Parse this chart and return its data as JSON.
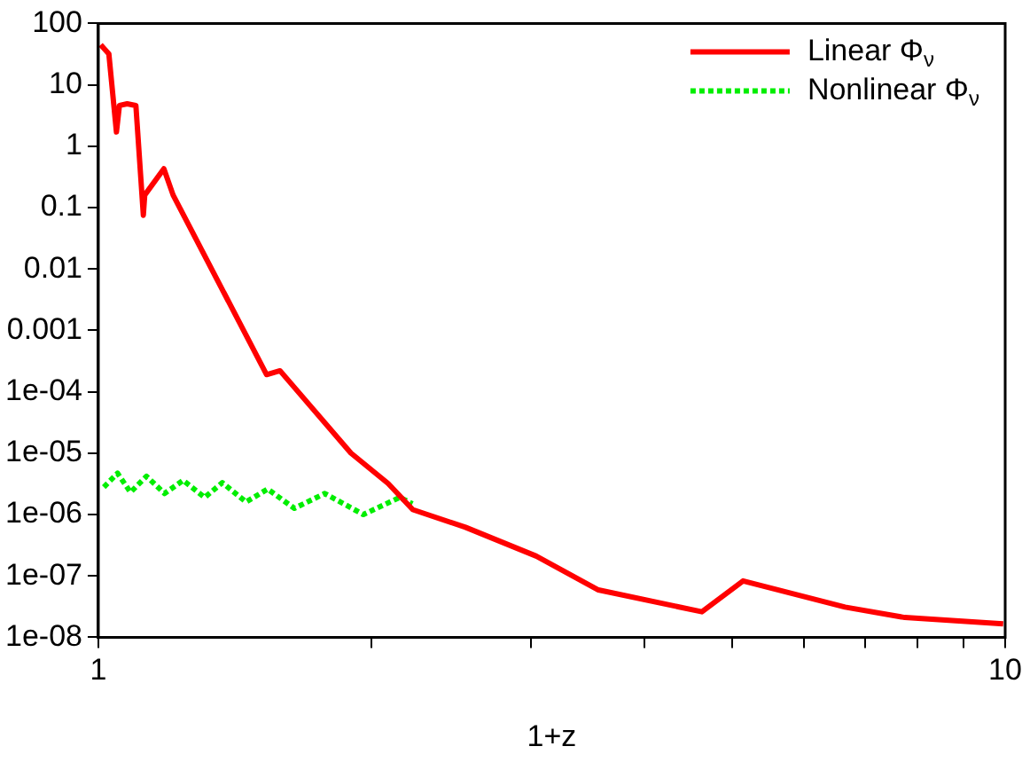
{
  "chart_data": {
    "type": "line",
    "xlabel": "1+z",
    "log": "xy",
    "grid": false,
    "legend": "top right",
    "marker": "none",
    "xlim": [
      1,
      10
    ],
    "ylim": [
      1e-08,
      100
    ],
    "xticks": [
      1,
      {
        "value": 2,
        "label": null
      },
      {
        "value": 3,
        "label": null
      },
      {
        "value": 4,
        "label": null
      },
      {
        "value": 5,
        "label": null
      },
      {
        "value": 6,
        "label": null
      },
      {
        "value": 7,
        "label": null
      },
      {
        "value": 8,
        "label": null
      },
      {
        "value": 9,
        "label": null
      },
      10
    ],
    "yticks": [
      {
        "value": 1e-08,
        "label": "1e-08"
      },
      {
        "value": 1e-07,
        "label": "1e-07"
      },
      {
        "value": 1e-06,
        "label": "1e-06"
      },
      {
        "value": 1e-05,
        "label": "1e-05"
      },
      {
        "value": 0.0001,
        "label": "1e-04"
      },
      0.001,
      0.01,
      0.1,
      1,
      10,
      100
    ],
    "series": [
      {
        "name": "Linear Φ$_{ν}$",
        "color": "#ff0000",
        "line_style": "solid",
        "x": [
          1.006,
          1.027,
          1.047,
          1.055,
          1.076,
          1.1,
          1.121,
          1.125,
          1.181,
          1.209,
          1.533,
          1.586,
          1.899,
          2.087,
          2.222,
          2.54,
          3.04,
          3.56,
          4.63,
          5.14,
          6.66,
          7.75,
          9.95
        ],
        "values": [
          45,
          32,
          1.7,
          4.6,
          4.9,
          4.6,
          0.075,
          0.16,
          0.43,
          0.16,
          0.00019,
          0.00022,
          1e-05,
          3.2e-06,
          1.2e-06,
          6.2e-07,
          2.1e-07,
          5.9e-08,
          2.6e-08,
          8.3e-08,
          3.1e-08,
          2.1e-08,
          1.65e-08
        ]
      },
      {
        "name": "Nonlinear Φ$_{ν}$",
        "color": "#00ee00",
        "line_style": "dotted",
        "x": [
          1.014,
          1.05,
          1.085,
          1.13,
          1.183,
          1.24,
          1.31,
          1.37,
          1.455,
          1.537,
          1.645,
          1.777,
          1.96,
          2.15,
          2.22
        ],
        "values": [
          2.8e-06,
          4.7e-06,
          2.3e-06,
          4.2e-06,
          2.2e-06,
          3.6e-06,
          1.9e-06,
          3.3e-06,
          1.6e-06,
          2.6e-06,
          1.26e-06,
          2.2e-06,
          1e-06,
          1.9e-06,
          1.5e-06
        ]
      }
    ]
  }
}
